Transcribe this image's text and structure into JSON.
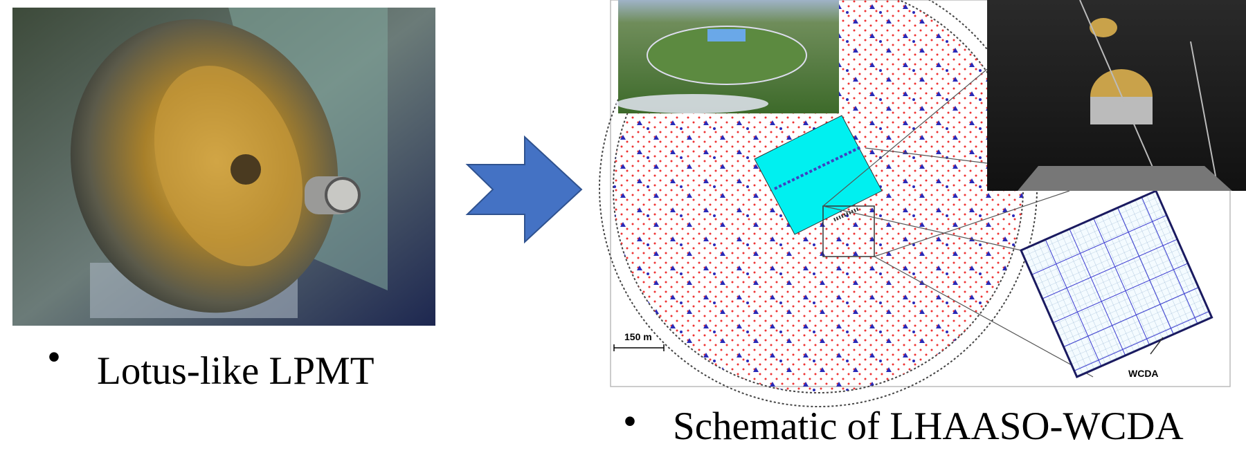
{
  "left": {
    "caption": "Lotus-like LPMT"
  },
  "right": {
    "caption": "Schematic of LHAASO-WCDA",
    "scale_label": "150 m",
    "grid_label": "WCDA"
  }
}
